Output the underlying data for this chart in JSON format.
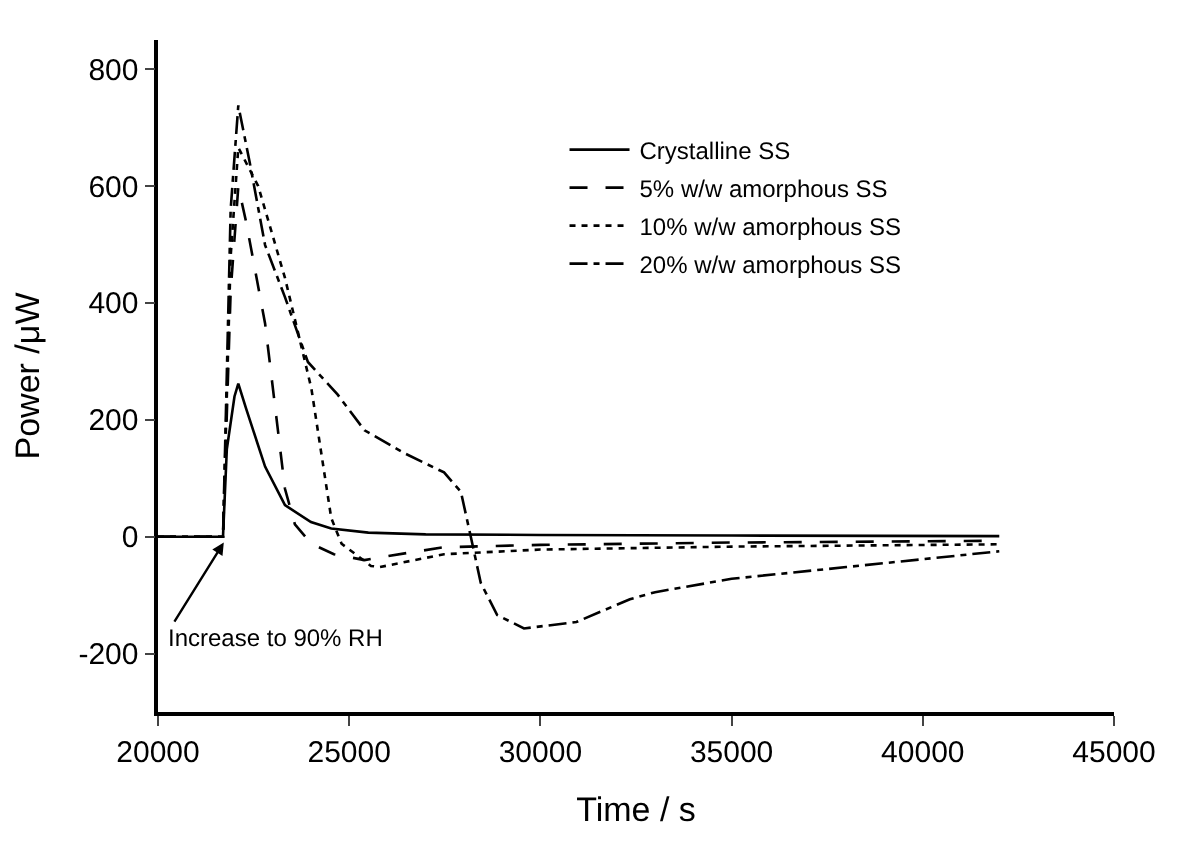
{
  "chart_data": {
    "type": "line",
    "xlabel": "Time / s",
    "ylabel": "Power /μW",
    "xlim": [
      20000,
      45000
    ],
    "xticks": [
      20000,
      25000,
      30000,
      35000,
      40000,
      45000
    ],
    "ylim": [
      -300,
      850
    ],
    "yticks": [
      -200,
      0,
      200,
      400,
      600,
      800
    ],
    "legend": "top right",
    "marker": "none",
    "annotations": [
      {
        "text": "Increase to 90% RH",
        "x": 21720,
        "y": -10
      }
    ],
    "series": [
      {
        "name": "Crystalline SS",
        "color": "#000000",
        "line_style": "solid",
        "x": [
          20000,
          21700,
          21800,
          22000,
          22100,
          22300,
          22800,
          23320,
          24000,
          24530,
          25500,
          27000,
          30000,
          35000,
          42000
        ],
        "values": [
          0,
          0,
          150,
          240,
          262,
          220,
          120,
          54,
          25,
          14,
          7,
          4,
          3,
          2,
          1
        ]
      },
      {
        "name": "5% w/w amorphous SS",
        "color": "#000000",
        "line_style": "dashed",
        "x": [
          20000,
          21700,
          21900,
          22100,
          22300,
          22800,
          23320,
          23580,
          24010,
          24600,
          25400,
          26500,
          27480,
          30000,
          35000,
          42000
        ],
        "values": [
          0,
          0,
          420,
          599,
          540,
          365,
          82,
          21,
          -12,
          -30,
          -40,
          -28,
          -18,
          -14,
          -10,
          -7
        ]
      },
      {
        "name": "10% w/w amorphous SS",
        "color": "#000000",
        "line_style": "dotted",
        "x": [
          20000,
          21700,
          21900,
          22100,
          22620,
          23320,
          24010,
          24530,
          24800,
          25570,
          25800,
          27480,
          30000,
          35000,
          42000
        ],
        "values": [
          0,
          0,
          480,
          666,
          600,
          443,
          254,
          32,
          -12,
          -50,
          -52,
          -30,
          -22,
          -17,
          -13
        ]
      },
      {
        "name": "20% w/w amorphous SS",
        "color": "#000000",
        "line_style": "dashdot",
        "x": [
          20000,
          21700,
          21900,
          22100,
          22400,
          22800,
          23320,
          23920,
          24700,
          25400,
          26440,
          27480,
          27920,
          28180,
          28440,
          28870,
          29570,
          30940,
          32340,
          33000,
          35000,
          38000,
          42000
        ],
        "values": [
          0,
          0,
          560,
          738,
          640,
          499,
          410,
          299,
          243,
          182,
          143,
          110,
          77,
          0,
          -79,
          -134,
          -157,
          -146,
          -107,
          -95,
          -72,
          -52,
          -25
        ]
      }
    ]
  }
}
